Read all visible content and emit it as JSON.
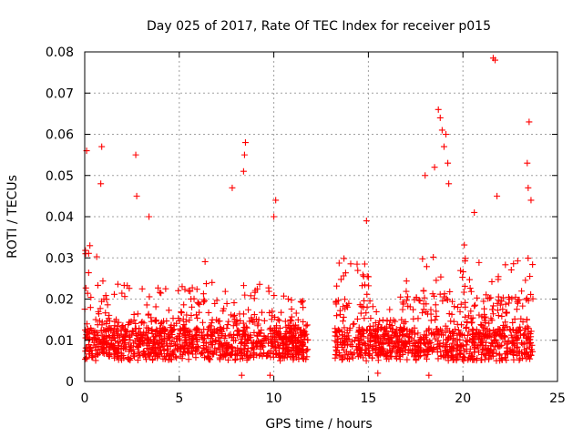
{
  "chart_data": {
    "type": "scatter",
    "title": "Day 025 of 2017, Rate Of TEC Index for receiver p015",
    "xlabel": "GPS time / hours",
    "ylabel": "ROTI / TECUs",
    "xlim": [
      0,
      25
    ],
    "ylim": [
      0,
      0.08
    ],
    "x_ticks": [
      "0",
      "5",
      "10",
      "15",
      "20",
      "25"
    ],
    "y_ticks": [
      "0",
      "0.01",
      "0.02",
      "0.03",
      "0.04",
      "0.05",
      "0.06",
      "0.07",
      "0.08"
    ],
    "grid": true,
    "marker": "+",
    "color": "#ff0000",
    "data_gap_hours": [
      11.8,
      13.2
    ],
    "notable_points": [
      {
        "x": 0.1,
        "y": 0.056
      },
      {
        "x": 0.9,
        "y": 0.057
      },
      {
        "x": 0.85,
        "y": 0.048
      },
      {
        "x": 2.7,
        "y": 0.055
      },
      {
        "x": 2.75,
        "y": 0.045
      },
      {
        "x": 3.4,
        "y": 0.04
      },
      {
        "x": 7.8,
        "y": 0.047
      },
      {
        "x": 8.5,
        "y": 0.058
      },
      {
        "x": 8.45,
        "y": 0.055
      },
      {
        "x": 8.4,
        "y": 0.051
      },
      {
        "x": 10.1,
        "y": 0.044
      },
      {
        "x": 10.0,
        "y": 0.04
      },
      {
        "x": 14.9,
        "y": 0.039
      },
      {
        "x": 18.0,
        "y": 0.05
      },
      {
        "x": 18.5,
        "y": 0.052
      },
      {
        "x": 18.7,
        "y": 0.066
      },
      {
        "x": 18.8,
        "y": 0.064
      },
      {
        "x": 18.9,
        "y": 0.061
      },
      {
        "x": 19.0,
        "y": 0.057
      },
      {
        "x": 19.1,
        "y": 0.06
      },
      {
        "x": 19.2,
        "y": 0.053
      },
      {
        "x": 19.25,
        "y": 0.048
      },
      {
        "x": 20.6,
        "y": 0.041
      },
      {
        "x": 21.6,
        "y": 0.0785
      },
      {
        "x": 21.7,
        "y": 0.078
      },
      {
        "x": 21.8,
        "y": 0.045
      },
      {
        "x": 23.5,
        "y": 0.063
      },
      {
        "x": 23.4,
        "y": 0.053
      },
      {
        "x": 23.45,
        "y": 0.047
      },
      {
        "x": 23.6,
        "y": 0.044
      },
      {
        "x": 9.8,
        "y": 0.0015
      },
      {
        "x": 8.3,
        "y": 0.0015
      },
      {
        "x": 15.5,
        "y": 0.002
      },
      {
        "x": 18.2,
        "y": 0.0015
      }
    ]
  }
}
